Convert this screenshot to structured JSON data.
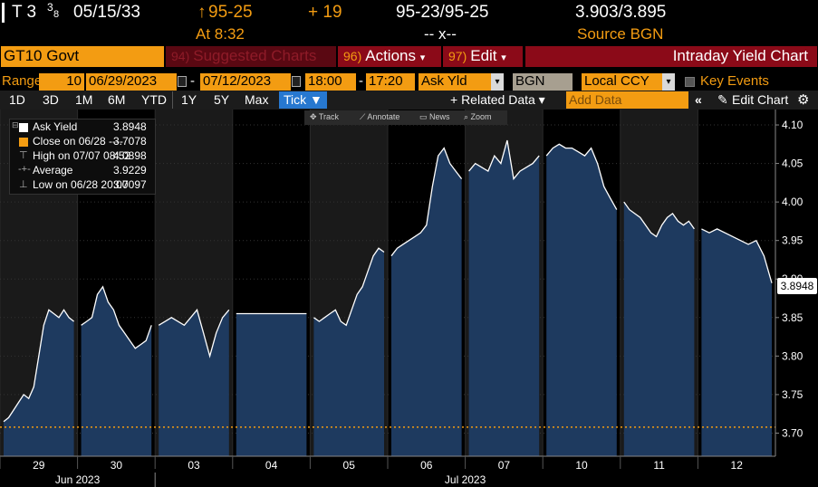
{
  "header": {
    "ticker_pre": "T 3",
    "ticker_frac": "3",
    "ticker_frac_den": "8",
    "maturity": "05/15/33",
    "price_arrow": "↑",
    "price": "95-25",
    "change": "+ 19",
    "bid_ask": "95-23/95-25",
    "yields": "3.903/3.895",
    "time_label": "At 8:32",
    "size": "-- x--",
    "source": "Source BGN"
  },
  "toolbar": {
    "security": "GT10 Govt",
    "suggested": {
      "num": "94)",
      "label": "Suggested Charts"
    },
    "actions": {
      "num": "96)",
      "label": "Actions"
    },
    "edit": {
      "num": "97)",
      "label": "Edit"
    },
    "title": "Intraday Yield Chart"
  },
  "range": {
    "label": "Range",
    "interval": "10",
    "start_date": "06/29/2023",
    "end_date": "07/12/2023",
    "start_time": "18:00",
    "end_time": "17:20",
    "field": "Ask Yld",
    "source": "BGN",
    "currency": "Local CCY",
    "key_events": "Key Events"
  },
  "periods": [
    "1D",
    "3D",
    "1M",
    "6M",
    "YTD",
    "1Y",
    "5Y",
    "Max"
  ],
  "tick": "Tick ▼",
  "related": "+ Related Data ▾",
  "add_data_placeholder": "Add Data",
  "edit_chart": "Edit Chart",
  "mini_toolbar": [
    "Track",
    "Annotate",
    "News",
    "Zoom"
  ],
  "legend": [
    {
      "label": "Ask Yield",
      "value": "3.8948",
      "color": "#ffffff"
    },
    {
      "label": "Close on 06/28 ----",
      "value": "3.7078",
      "color": "#f39c12"
    },
    {
      "label": "High on 07/07 08:52",
      "value": "4.0898",
      "color": "#aaaaaa"
    },
    {
      "label": "Average",
      "value": "3.9229",
      "color": "#aaaaaa"
    },
    {
      "label": "Low on 06/28 20:00",
      "value": "3.7097",
      "color": "#aaaaaa"
    }
  ],
  "last_value": "3.8948",
  "chart_data": {
    "type": "area",
    "title": "Intraday Yield Chart",
    "ylim": [
      3.67,
      4.12
    ],
    "yticks": [
      3.7,
      3.75,
      3.8,
      3.85,
      3.9,
      3.95,
      4.0,
      4.05,
      4.1
    ],
    "ytick_labels": [
      "3.70",
      "3.75",
      "3.80",
      "3.85",
      "3.90",
      "3.95",
      "4.00",
      "4.05",
      "4.10"
    ],
    "x_day_labels": [
      "29",
      "30",
      "03",
      "04",
      "05",
      "06",
      "07",
      "10",
      "11",
      "12"
    ],
    "month_labels": [
      "Jun 2023",
      "Jul 2023"
    ],
    "reference_line": {
      "name": "Close on 06/28",
      "value": 3.7078,
      "color": "#f39c12"
    },
    "series": [
      {
        "name": "Ask Yield",
        "sessions": [
          {
            "day": "29",
            "values": [
              3.715,
              3.72,
              3.73,
              3.74,
              3.75,
              3.745,
              3.76,
              3.8,
              3.84,
              3.86,
              3.855,
              3.85,
              3.86,
              3.85,
              3.845
            ]
          },
          {
            "day": "30",
            "values": [
              3.84,
              3.845,
              3.85,
              3.88,
              3.89,
              3.87,
              3.86,
              3.84,
              3.83,
              3.82,
              3.81,
              3.815,
              3.82,
              3.84
            ]
          },
          {
            "day": "03",
            "values": [
              3.84,
              3.845,
              3.85,
              3.845,
              3.84,
              3.85,
              3.86,
              3.83,
              3.8,
              3.83,
              3.85,
              3.86
            ]
          },
          {
            "day": "04",
            "values": [
              3.855,
              3.855,
              3.855
            ]
          },
          {
            "day": "05",
            "values": [
              3.85,
              3.845,
              3.85,
              3.855,
              3.86,
              3.845,
              3.84,
              3.86,
              3.88,
              3.89,
              3.91,
              3.93,
              3.94,
              3.935
            ]
          },
          {
            "day": "06",
            "values": [
              3.93,
              3.94,
              3.945,
              3.95,
              3.955,
              3.96,
              3.97,
              4.02,
              4.06,
              4.07,
              4.05,
              4.04,
              4.03
            ]
          },
          {
            "day": "07",
            "values": [
              4.04,
              4.05,
              4.045,
              4.04,
              4.06,
              4.05,
              4.08,
              4.03,
              4.04,
              4.045,
              4.05,
              4.06
            ]
          },
          {
            "day": "10",
            "values": [
              4.06,
              4.07,
              4.075,
              4.07,
              4.07,
              4.065,
              4.06,
              4.07,
              4.05,
              4.02,
              4.005,
              3.99
            ]
          },
          {
            "day": "11",
            "values": [
              4.0,
              3.99,
              3.985,
              3.98,
              3.97,
              3.96,
              3.955,
              3.97,
              3.98,
              3.985,
              3.975,
              3.97,
              3.975,
              3.965
            ]
          },
          {
            "day": "12",
            "values": [
              3.965,
              3.96,
              3.965,
              3.96,
              3.955,
              3.95,
              3.945,
              3.95,
              3.93,
              3.8948
            ]
          }
        ]
      }
    ],
    "colors": {
      "fill": "#1e3a5f",
      "line": "#ffffff",
      "session_shade": "#222222"
    }
  }
}
